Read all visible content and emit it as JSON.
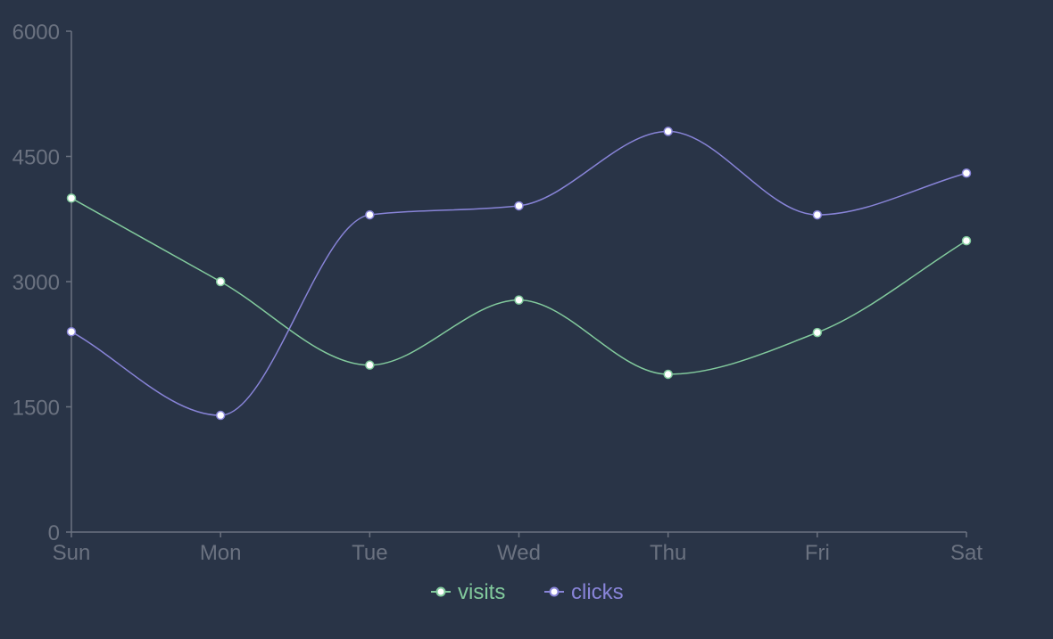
{
  "colors": {
    "background": "#293447",
    "axis": "#6b7280",
    "tick_text": "#6b7280",
    "point_fill": "#ffffff"
  },
  "chart_data": {
    "type": "line",
    "curve": "smooth",
    "categories": [
      "Sun",
      "Mon",
      "Tue",
      "Wed",
      "Thu",
      "Fri",
      "Sat"
    ],
    "y_ticks": [
      "6000",
      "4500",
      "3000",
      "1500",
      "0"
    ],
    "ylim": [
      0,
      6000
    ],
    "grid": false,
    "legend_position": "bottom-center",
    "series": [
      {
        "name": "visits",
        "color": "#82ca9d",
        "values": [
          4000,
          3000,
          2000,
          2780,
          1890,
          2390,
          3490
        ]
      },
      {
        "name": "clicks",
        "color": "#8884d8",
        "values": [
          2400,
          1398,
          3800,
          3908,
          4800,
          3800,
          4300
        ]
      }
    ]
  }
}
